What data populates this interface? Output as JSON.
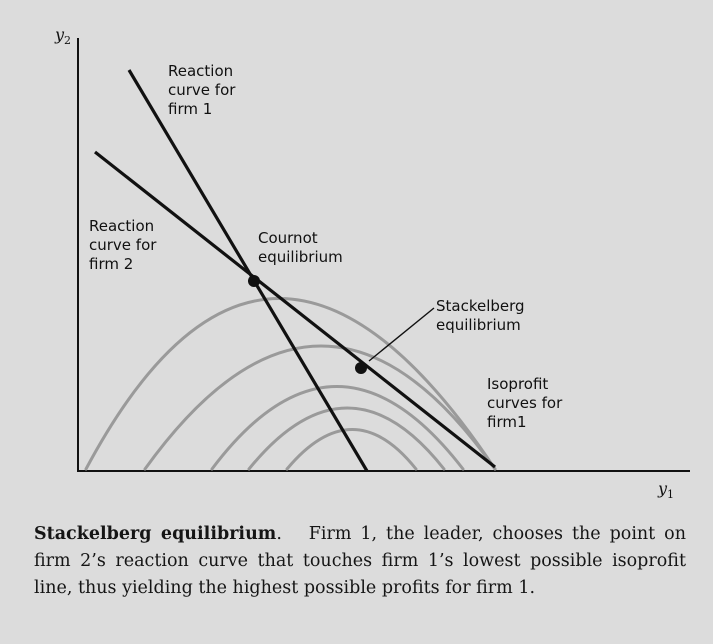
{
  "axes": {
    "x_symbol": "y",
    "x_subscript": "1",
    "y_symbol": "y",
    "y_subscript": "2"
  },
  "labels": {
    "reaction_curve_firm1": [
      "Reaction",
      "curve for",
      "firm 1"
    ],
    "reaction_curve_firm2": [
      "Reaction",
      "curve for",
      "firm 2"
    ],
    "cournot": [
      "Cournot",
      "equilibrium"
    ],
    "stackelberg": [
      "Stackelberg",
      "equilibrium"
    ],
    "isoprofit": [
      "Isoprofit",
      "curves for",
      "firm1"
    ]
  },
  "caption": {
    "title": "Stackelberg equilibrium",
    "title_suffix": ".",
    "body": "Firm 1, the leader, chooses the point on firm 2’s reaction curve that touches firm 1’s lowest possible isoprofit line, thus yielding the highest possible profits for firm 1."
  },
  "colors": {
    "line": "#111111",
    "isoprofit": "#9a9a9a",
    "background": "#dcdcdc"
  }
}
